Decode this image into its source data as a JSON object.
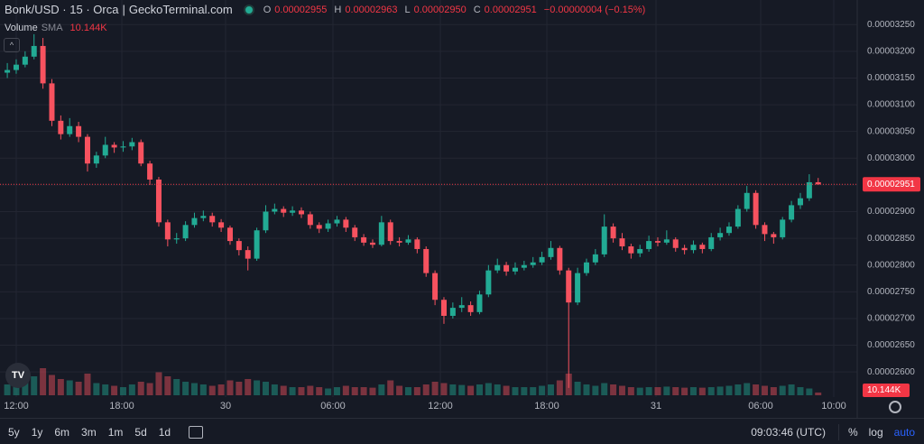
{
  "header": {
    "symbol": "Bonk/USD · 15 · Orca",
    "separator": "|",
    "source": "GeckoTerminal.com",
    "ohlc": [
      {
        "key": "O",
        "value": "0.00002955"
      },
      {
        "key": "H",
        "value": "0.00002963"
      },
      {
        "key": "L",
        "value": "0.00002950"
      },
      {
        "key": "C",
        "value": "0.00002951"
      }
    ],
    "change": "−0.00000004 (−0.15%)"
  },
  "indicator": {
    "name": "Volume",
    "sub": "SMA",
    "value_label": "10.144K"
  },
  "toolbar": {
    "ranges": [
      "5y",
      "1y",
      "6m",
      "3m",
      "1m",
      "5d",
      "1d"
    ],
    "clock": "09:03:46 (UTC)",
    "options": [
      "%",
      "log",
      "auto"
    ]
  },
  "chart_data": {
    "type": "candlestick",
    "up_color": "#22ab94",
    "down_color": "#f7525f",
    "grid": true,
    "last_price_label": "0.00002951",
    "x_labels": [
      "12:00",
      "18:00",
      "30",
      "06:00",
      "12:00",
      "18:00",
      "31",
      "06:00",
      "10:00"
    ],
    "ylim": [
      2.553e-05,
      3.296e-05
    ],
    "yticks": [
      {
        "value": 3.25e-05,
        "label": "0.00003250"
      },
      {
        "value": 3.2e-05,
        "label": "0.00003200"
      },
      {
        "value": 3.15e-05,
        "label": "0.00003150"
      },
      {
        "value": 3.1e-05,
        "label": "0.00003100"
      },
      {
        "value": 3.05e-05,
        "label": "0.00003050"
      },
      {
        "value": 3e-05,
        "label": "0.00003000"
      },
      {
        "value": 2.95e-05,
        "label": "0.00002950"
      },
      {
        "value": 2.9e-05,
        "label": "0.00002900"
      },
      {
        "value": 2.85e-05,
        "label": "0.00002850"
      },
      {
        "value": 2.8e-05,
        "label": "0.00002800"
      },
      {
        "value": 2.75e-05,
        "label": "0.00002750"
      },
      {
        "value": 2.7e-05,
        "label": "0.00002700"
      },
      {
        "value": 2.65e-05,
        "label": "0.00002650"
      },
      {
        "value": 2.6e-05,
        "label": "0.00002600"
      }
    ],
    "open": [
      3.16e-05,
      3.165e-05,
      3.175e-05,
      3.19e-05,
      3.21e-05,
      3.14e-05,
      3.07e-05,
      3.045e-05,
      3.06e-05,
      3.04e-05,
      2.99e-05,
      3.005e-05,
      3.025e-05,
      3.02e-05,
      3.022e-05,
      3.03e-05,
      2.99e-05,
      2.96e-05,
      2.88e-05,
      2.848e-05,
      2.85e-05,
      2.875e-05,
      2.888e-05,
      2.892e-05,
      2.88e-05,
      2.87e-05,
      2.845e-05,
      2.828e-05,
      2.812e-05,
      2.865e-05,
      2.9e-05,
      2.905e-05,
      2.898e-05,
      2.902e-05,
      2.895e-05,
      2.875e-05,
      2.868e-05,
      2.878e-05,
      2.885e-05,
      2.87e-05,
      2.852e-05,
      2.842e-05,
      2.838e-05,
      2.88e-05,
      2.845e-05,
      2.842e-05,
      2.848e-05,
      2.83e-05,
      2.785e-05,
      2.735e-05,
      2.705e-05,
      2.72e-05,
      2.725e-05,
      2.712e-05,
      2.745e-05,
      2.79e-05,
      2.8e-05,
      2.788e-05,
      2.795e-05,
      2.8e-05,
      2.805e-05,
      2.815e-05,
      2.832e-05,
      2.79e-05,
      2.73e-05,
      2.785e-05,
      2.805e-05,
      2.82e-05,
      2.872e-05,
      2.85e-05,
      2.835e-05,
      2.822e-05,
      2.83e-05,
      2.845e-05,
      2.842e-05,
      2.848e-05,
      2.832e-05,
      2.828e-05,
      2.838e-05,
      2.83e-05,
      2.852e-05,
      2.86e-05,
      2.872e-05,
      2.905e-05,
      2.935e-05,
      2.875e-05,
      2.858e-05,
      2.852e-05,
      2.885e-05,
      2.912e-05,
      2.925e-05,
      2.955e-05
    ],
    "high": [
      3.178e-05,
      3.185e-05,
      3.2e-05,
      3.232e-05,
      3.225e-05,
      3.148e-05,
      3.08e-05,
      3.075e-05,
      3.068e-05,
      3.045e-05,
      3.012e-05,
      3.04e-05,
      3.03e-05,
      3.032e-05,
      3.038e-05,
      3.035e-05,
      2.995e-05,
      2.965e-05,
      2.885e-05,
      2.86e-05,
      2.882e-05,
      2.898e-05,
      2.902e-05,
      2.898e-05,
      2.886e-05,
      2.874e-05,
      2.85e-05,
      2.835e-05,
      2.87e-05,
      2.912e-05,
      2.915e-05,
      2.91e-05,
      2.91e-05,
      2.908e-05,
      2.9e-05,
      2.88e-05,
      2.885e-05,
      2.892e-05,
      2.89e-05,
      2.875e-05,
      2.858e-05,
      2.848e-05,
      2.892e-05,
      2.885e-05,
      2.852e-05,
      2.856e-05,
      2.852e-05,
      2.835e-05,
      2.79e-05,
      2.74e-05,
      2.73e-05,
      2.74e-05,
      2.732e-05,
      2.752e-05,
      2.8e-05,
      2.812e-05,
      2.806e-05,
      2.805e-05,
      2.808e-05,
      2.815e-05,
      2.825e-05,
      2.845e-05,
      2.836e-05,
      2.795e-05,
      2.795e-05,
      2.812e-05,
      2.83e-05,
      2.895e-05,
      2.878e-05,
      2.86e-05,
      2.84e-05,
      2.838e-05,
      2.855e-05,
      2.852e-05,
      2.865e-05,
      2.852e-05,
      2.838e-05,
      2.846e-05,
      2.842e-05,
      2.86e-05,
      2.87e-05,
      2.88e-05,
      2.912e-05,
      2.948e-05,
      2.94e-05,
      2.88e-05,
      2.862e-05,
      2.89e-05,
      2.92e-05,
      2.935e-05,
      2.97e-05,
      2.963e-05
    ],
    "low": [
      3.15e-05,
      3.158e-05,
      3.17e-05,
      3.185e-05,
      3.13e-05,
      3.06e-05,
      3.035e-05,
      3.04e-05,
      3.03e-05,
      2.975e-05,
      2.982e-05,
      3e-05,
      3.01e-05,
      3.012e-05,
      3.015e-05,
      2.985e-05,
      2.95e-05,
      2.872e-05,
      2.835e-05,
      2.84e-05,
      2.845e-05,
      2.87e-05,
      2.882e-05,
      2.872e-05,
      2.862e-05,
      2.838e-05,
      2.818e-05,
      2.79e-05,
      2.808e-05,
      2.86e-05,
      2.895e-05,
      2.89e-05,
      2.892e-05,
      2.888e-05,
      2.868e-05,
      2.86e-05,
      2.862e-05,
      2.872e-05,
      2.862e-05,
      2.845e-05,
      2.836e-05,
      2.832e-05,
      2.835e-05,
      2.838e-05,
      2.835e-05,
      2.838e-05,
      2.822e-05,
      2.778e-05,
      2.725e-05,
      2.69e-05,
      2.7e-05,
      2.712e-05,
      2.705e-05,
      2.708e-05,
      2.74e-05,
      2.785e-05,
      2.78e-05,
      2.782e-05,
      2.79e-05,
      2.795e-05,
      2.8e-05,
      2.81e-05,
      2.782e-05,
      2.57e-05,
      2.725e-05,
      2.78e-05,
      2.8e-05,
      2.815e-05,
      2.842e-05,
      2.828e-05,
      2.812e-05,
      2.815e-05,
      2.825e-05,
      2.835e-05,
      2.838e-05,
      2.825e-05,
      2.82e-05,
      2.822e-05,
      2.822e-05,
      2.826e-05,
      2.846e-05,
      2.855e-05,
      2.868e-05,
      2.9e-05,
      2.868e-05,
      2.845e-05,
      2.84e-05,
      2.848e-05,
      2.88e-05,
      2.905e-05,
      2.92e-05,
      2.95e-05
    ],
    "close": [
      3.165e-05,
      3.175e-05,
      3.19e-05,
      3.21e-05,
      3.14e-05,
      3.07e-05,
      3.045e-05,
      3.06e-05,
      3.04e-05,
      2.99e-05,
      3.005e-05,
      3.025e-05,
      3.02e-05,
      3.022e-05,
      3.03e-05,
      2.99e-05,
      2.96e-05,
      2.88e-05,
      2.848e-05,
      2.85e-05,
      2.875e-05,
      2.888e-05,
      2.892e-05,
      2.88e-05,
      2.87e-05,
      2.845e-05,
      2.828e-05,
      2.812e-05,
      2.865e-05,
      2.9e-05,
      2.905e-05,
      2.898e-05,
      2.902e-05,
      2.895e-05,
      2.875e-05,
      2.868e-05,
      2.878e-05,
      2.885e-05,
      2.87e-05,
      2.852e-05,
      2.842e-05,
      2.838e-05,
      2.88e-05,
      2.845e-05,
      2.842e-05,
      2.848e-05,
      2.83e-05,
      2.785e-05,
      2.735e-05,
      2.705e-05,
      2.72e-05,
      2.725e-05,
      2.712e-05,
      2.745e-05,
      2.79e-05,
      2.8e-05,
      2.788e-05,
      2.795e-05,
      2.8e-05,
      2.805e-05,
      2.815e-05,
      2.832e-05,
      2.79e-05,
      2.73e-05,
      2.785e-05,
      2.805e-05,
      2.82e-05,
      2.872e-05,
      2.85e-05,
      2.835e-05,
      2.822e-05,
      2.83e-05,
      2.845e-05,
      2.842e-05,
      2.848e-05,
      2.832e-05,
      2.828e-05,
      2.838e-05,
      2.83e-05,
      2.852e-05,
      2.86e-05,
      2.872e-05,
      2.905e-05,
      2.935e-05,
      2.875e-05,
      2.858e-05,
      2.852e-05,
      2.885e-05,
      2.912e-05,
      2.925e-05,
      2.955e-05,
      2.951e-05
    ],
    "volume": [
      40000,
      45000,
      50000,
      70000,
      100000,
      75000,
      60000,
      55000,
      50000,
      80000,
      45000,
      40000,
      35000,
      30000,
      40000,
      50000,
      45000,
      85000,
      70000,
      60000,
      50000,
      45000,
      40000,
      35000,
      40000,
      55000,
      50000,
      60000,
      55000,
      50000,
      40000,
      35000,
      30000,
      30000,
      35000,
      30000,
      25000,
      30000,
      35000,
      30000,
      30000,
      28000,
      40000,
      55000,
      35000,
      30000,
      30000,
      40000,
      50000,
      45000,
      40000,
      38000,
      35000,
      40000,
      45000,
      40000,
      35000,
      30000,
      30000,
      30000,
      35000,
      40000,
      55000,
      80000,
      50000,
      40000,
      35000,
      45000,
      40000,
      35000,
      30000,
      28000,
      30000,
      30000,
      32000,
      30000,
      28000,
      30000,
      28000,
      30000,
      32000,
      35000,
      40000,
      45000,
      40000,
      35000,
      30000,
      35000,
      40000,
      30000,
      25000,
      10144
    ]
  }
}
